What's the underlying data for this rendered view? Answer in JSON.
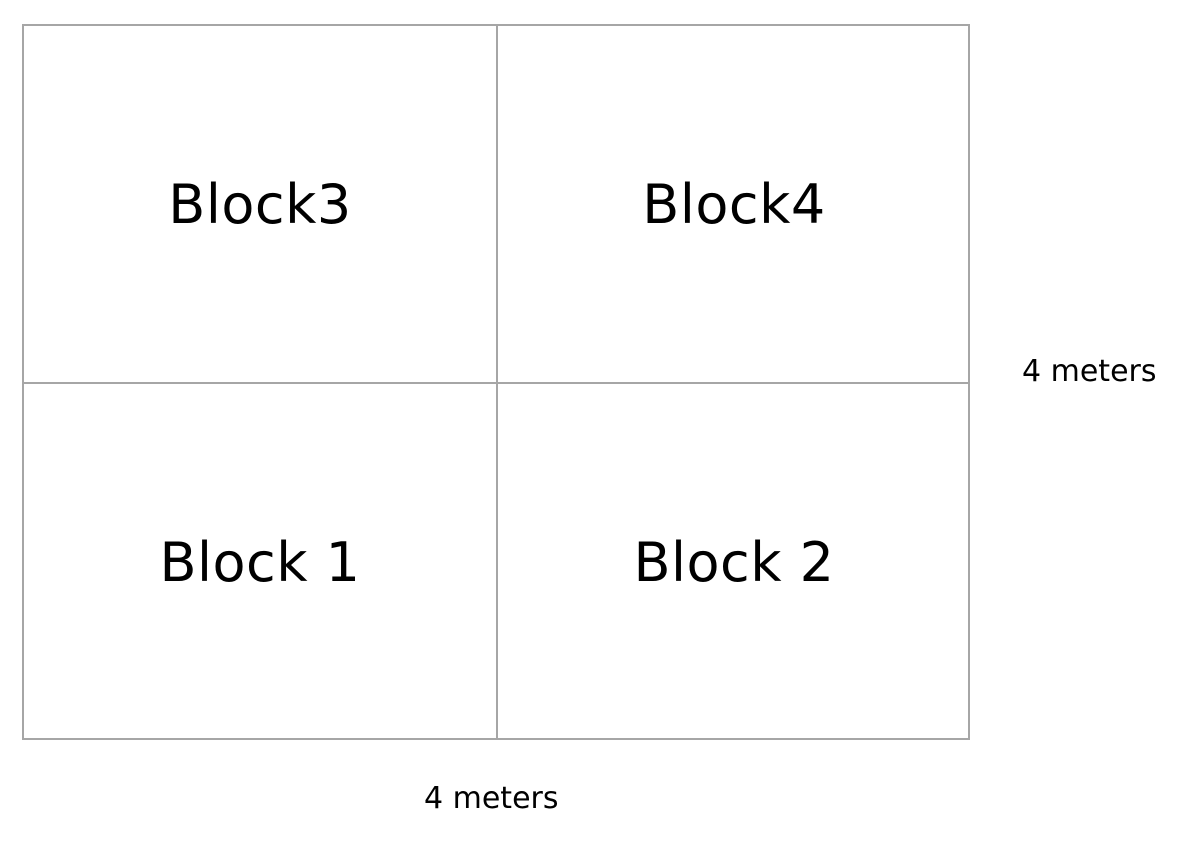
{
  "blocks": {
    "top_left": "Block3",
    "top_right": "Block4",
    "bottom_left": "Block 1",
    "bottom_right": "Block 2"
  },
  "dimensions": {
    "height": "4 meters",
    "width": "4 meters"
  },
  "colors": {
    "grid_line": "#a6a6a6",
    "text": "#000000",
    "background": "#ffffff"
  }
}
